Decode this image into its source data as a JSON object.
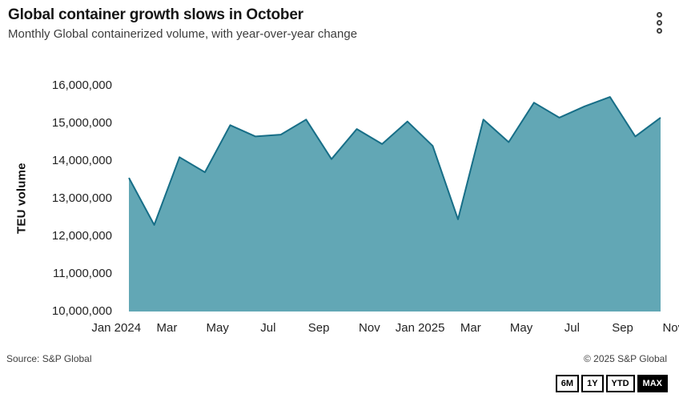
{
  "header": {
    "title": "Global container growth slows in October",
    "subtitle": "Monthly Global containerized volume, with year-over-year change"
  },
  "chart_data": {
    "type": "area",
    "title": "Global container growth slows in October",
    "subtitle": "Monthly Global containerized volume, with year-over-year change",
    "xlabel": "",
    "ylabel": "TEU volume",
    "ylim": [
      10000000,
      16000000
    ],
    "y_tick_step": 1000000,
    "y_tick_labels": [
      "16,000,000",
      "15,000,000",
      "14,000,000",
      "13,000,000",
      "12,000,000",
      "11,000,000",
      "10,000,000"
    ],
    "x_tick_labels": [
      "Jan 2024",
      "Mar",
      "May",
      "Jul",
      "Sep",
      "Nov",
      "Jan 2025",
      "Mar",
      "May",
      "Jul",
      "Sep",
      "Nov"
    ],
    "grid": false,
    "legend": false,
    "series": [
      {
        "name": "TEU volume",
        "x": [
          "Jan 2024",
          "Feb 2024",
          "Mar 2024",
          "Apr 2024",
          "May 2024",
          "Jun 2024",
          "Jul 2024",
          "Aug 2024",
          "Sep 2024",
          "Oct 2024",
          "Nov 2024",
          "Dec 2024",
          "Jan 2025",
          "Feb 2025",
          "Mar 2025",
          "Apr 2025",
          "May 2025",
          "Jun 2025",
          "Jul 2025",
          "Aug 2025",
          "Sep 2025",
          "Oct 2025"
        ],
        "values": [
          13550000,
          12300000,
          14100000,
          13700000,
          14950000,
          14650000,
          14700000,
          15100000,
          14050000,
          14850000,
          14450000,
          15050000,
          14400000,
          12450000,
          15100000,
          14500000,
          15550000,
          15150000,
          15450000,
          15700000,
          14650000,
          15150000
        ]
      }
    ],
    "colors": {
      "area_fill": "#62a7b5",
      "line": "#176e87"
    }
  },
  "icons": {
    "menu": "kebab-menu-icon"
  },
  "footer": {
    "source": "Source: S&P Global",
    "copyright": "© 2025 S&P Global"
  },
  "range_buttons": [
    {
      "label": "6M",
      "active": false
    },
    {
      "label": "1Y",
      "active": false
    },
    {
      "label": "YTD",
      "active": false
    },
    {
      "label": "MAX",
      "active": true
    }
  ]
}
